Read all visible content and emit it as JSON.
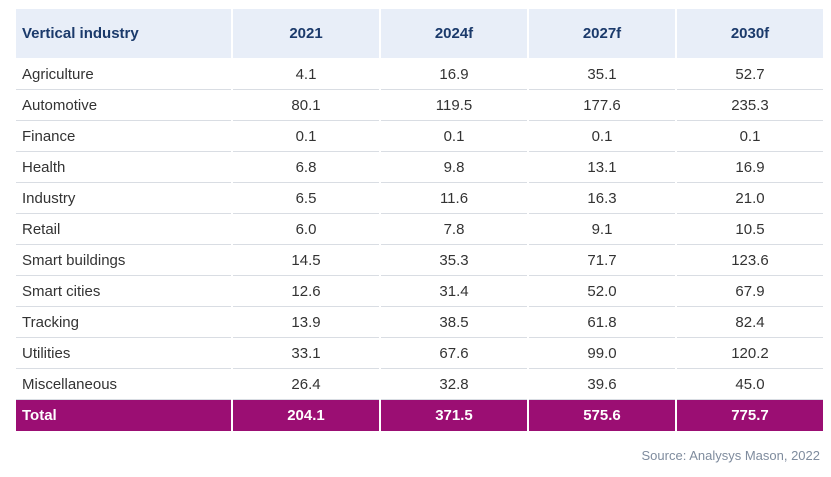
{
  "table": {
    "headers": [
      "Vertical industry",
      "2021",
      "2024f",
      "2027f",
      "2030f"
    ],
    "rows": [
      [
        "Agriculture",
        "4.1",
        "16.9",
        "35.1",
        "52.7"
      ],
      [
        "Automotive",
        "80.1",
        "119.5",
        "177.6",
        "235.3"
      ],
      [
        "Finance",
        "0.1",
        "0.1",
        "0.1",
        "0.1"
      ],
      [
        "Health",
        "6.8",
        "9.8",
        "13.1",
        "16.9"
      ],
      [
        "Industry",
        "6.5",
        "11.6",
        "16.3",
        "21.0"
      ],
      [
        "Retail",
        "6.0",
        "7.8",
        "9.1",
        "10.5"
      ],
      [
        "Smart buildings",
        "14.5",
        "35.3",
        "71.7",
        "123.6"
      ],
      [
        "Smart cities",
        "12.6",
        "31.4",
        "52.0",
        "67.9"
      ],
      [
        "Tracking",
        "13.9",
        "38.5",
        "61.8",
        "82.4"
      ],
      [
        "Utilities",
        "33.1",
        "67.6",
        "99.0",
        "120.2"
      ],
      [
        "Miscellaneous",
        "26.4",
        "32.8",
        "39.6",
        "45.0"
      ]
    ],
    "total": [
      "Total",
      "204.1",
      "371.5",
      "575.6",
      "775.7"
    ]
  },
  "source": "Source: Analysys Mason, 2022",
  "colors": {
    "header_bg": "#e8eef8",
    "header_text": "#1b3a6b",
    "total_bg": "#9b0e73",
    "source_text": "#7f8c9e"
  }
}
